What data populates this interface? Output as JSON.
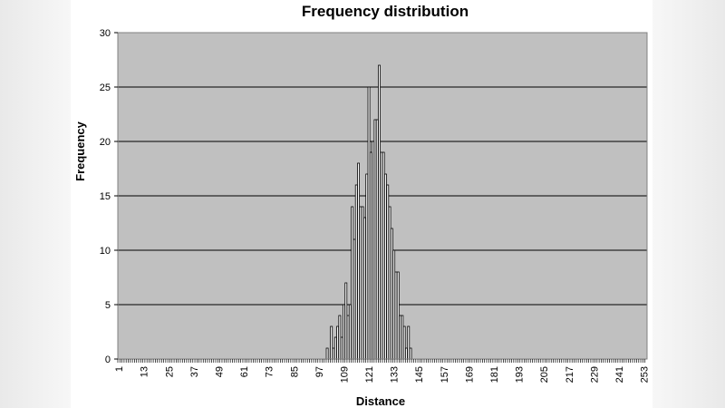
{
  "chart_data": {
    "type": "bar",
    "title": "Frequency distribution",
    "xlabel": "Distance",
    "ylabel": "Frequency",
    "ylim": [
      0,
      30
    ],
    "yticks": [
      0,
      5,
      10,
      15,
      20,
      25,
      30
    ],
    "xlim": [
      1,
      254
    ],
    "xticks": [
      1,
      13,
      25,
      37,
      49,
      61,
      73,
      85,
      97,
      109,
      121,
      133,
      145,
      157,
      169,
      181,
      193,
      205,
      217,
      229,
      241,
      253
    ],
    "grid": true,
    "legend": "none",
    "colors": {
      "plot_bg": "#c0c0c0",
      "bar": "#ffffff",
      "bar_edge": "#000000",
      "grid": "#000000"
    },
    "x": [
      101,
      103,
      104,
      105,
      106,
      107,
      108,
      109,
      110,
      111,
      112,
      113,
      114,
      115,
      116,
      117,
      118,
      119,
      120,
      121,
      122,
      123,
      124,
      125,
      126,
      127,
      128,
      129,
      130,
      131,
      132,
      133,
      134,
      135,
      136,
      137,
      138,
      139,
      140,
      141
    ],
    "values": [
      1,
      3,
      1,
      2,
      3,
      4,
      2,
      5,
      7,
      4,
      5,
      14,
      11,
      16,
      18,
      14,
      14,
      13,
      17,
      25,
      19,
      20,
      22,
      22,
      27,
      19,
      19,
      17,
      16,
      14,
      12,
      10,
      8,
      8,
      4,
      4,
      3,
      1,
      3,
      1
    ]
  }
}
